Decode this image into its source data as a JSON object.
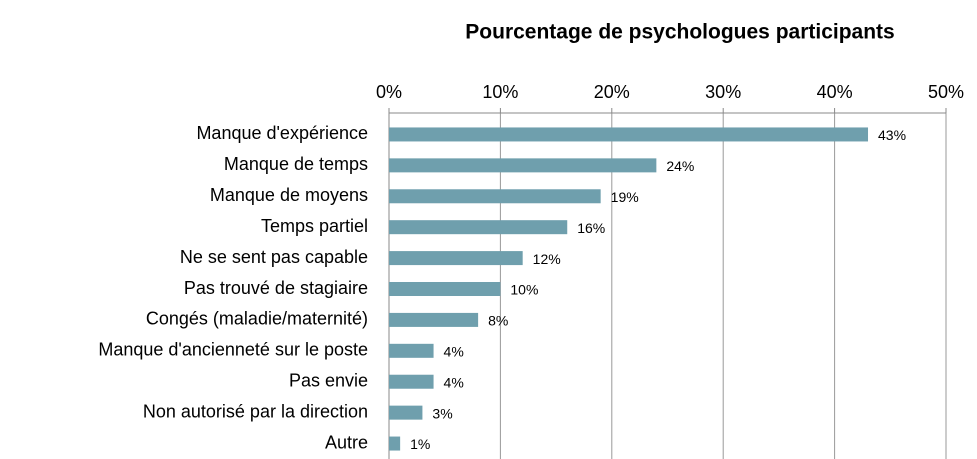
{
  "chart_data": {
    "type": "hbar",
    "title": "Pourcentage de psychologues participants",
    "categories": [
      "Manque d'expérience",
      "Manque de temps",
      "Manque de moyens",
      "Temps partiel",
      "Ne se sent pas capable",
      "Pas trouvé de stagiaire",
      "Congés (maladie/maternité)",
      "Manque d'ancienneté sur le poste",
      "Pas envie",
      "Non autorisé par la direction",
      "Autre"
    ],
    "values": [
      43,
      24,
      19,
      16,
      12,
      10,
      8,
      4,
      4,
      3,
      1
    ],
    "value_labels": [
      "43%",
      "24%",
      "19%",
      "16%",
      "12%",
      "10%",
      "8%",
      "4%",
      "4%",
      "3%",
      "1%"
    ],
    "color": "#6f9fad",
    "xlim": [
      0,
      50
    ],
    "xticks": [
      {
        "value": 0,
        "label": "0%"
      },
      {
        "value": 10,
        "label": "10%"
      },
      {
        "value": 20,
        "label": "20%"
      },
      {
        "value": 30,
        "label": "30%"
      },
      {
        "value": 40,
        "label": "40%"
      },
      {
        "value": 50,
        "label": "50%"
      }
    ],
    "grid": true
  }
}
